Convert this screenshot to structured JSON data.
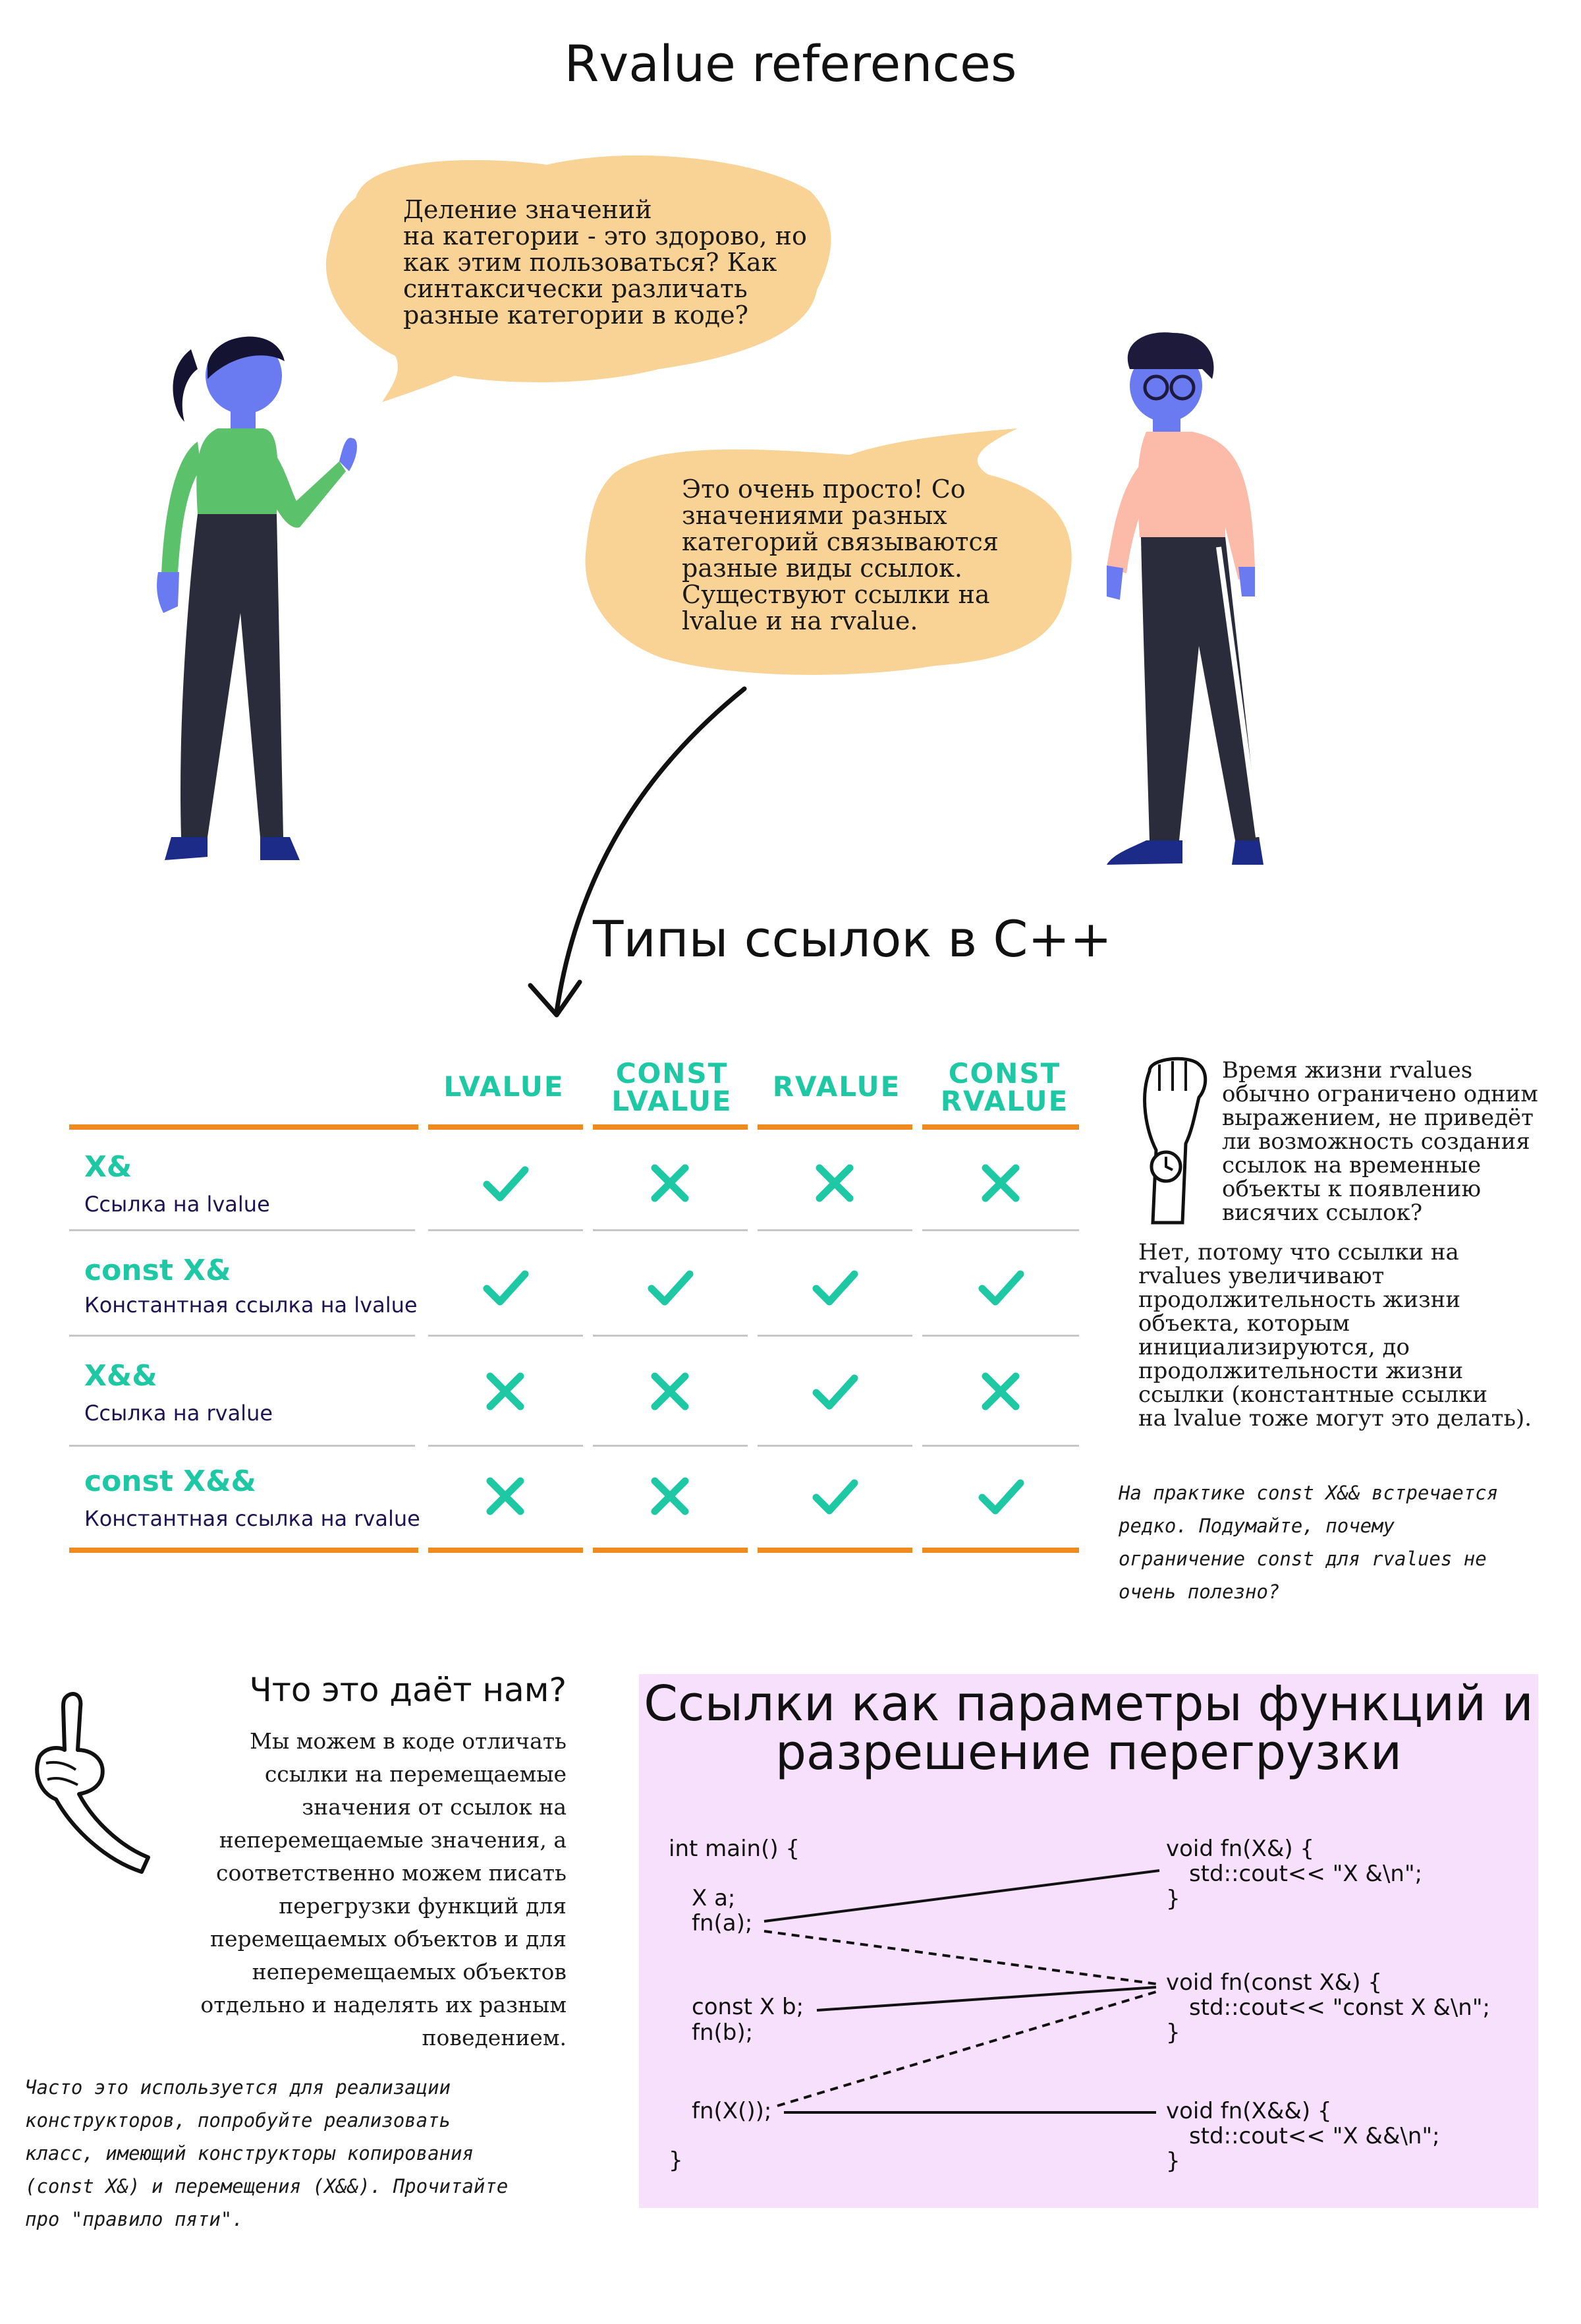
{
  "title": "Rvalue references",
  "dialogue": {
    "question_lines": [
      "Деление значений",
      "на категории - это здорово, но",
      "как этим пользоваться? Как",
      "синтаксически различать",
      "разные категории в коде?"
    ],
    "answer_lines": [
      "Это очень просто! Со",
      "значениями разных",
      "категорий связываются",
      "разные виды ссылок.",
      "Существуют ссылки на",
      "lvalue и на rvalue."
    ]
  },
  "types_title": "Типы ссылок в C++",
  "table": {
    "headers": [
      {
        "line1": "LVALUE",
        "line2": ""
      },
      {
        "line1": "CONST",
        "line2": "LVALUE"
      },
      {
        "line1": "RVALUE",
        "line2": ""
      },
      {
        "line1": "CONST",
        "line2": "RVALUE"
      }
    ],
    "rows": [
      {
        "label": "X&",
        "sub": "Ссылка на lvalue",
        "cells": [
          "check",
          "cross",
          "cross",
          "cross"
        ]
      },
      {
        "label": "const X&",
        "sub": "Константная ссылка на lvalue",
        "cells": [
          "check",
          "check",
          "check",
          "check"
        ]
      },
      {
        "label": "X&&",
        "sub": "Ссылка на rvalue",
        "cells": [
          "cross",
          "cross",
          "check",
          "cross"
        ]
      },
      {
        "label": "const X&&",
        "sub": "Константная ссылка на rvalue",
        "cells": [
          "cross",
          "cross",
          "check",
          "check"
        ]
      }
    ],
    "colors": {
      "accent": "#1ec8a5",
      "line": "#ef8a1f",
      "sub_text": "#1e1454"
    }
  },
  "side_note": {
    "question_lines": [
      "Время жизни rvalues",
      "обычно ограничено одним",
      "выражением, не приведёт",
      "ли возможность создания",
      "ссылок на временные",
      "объекты к появлению",
      "висячих ссылок?"
    ],
    "answer_lines": [
      "Нет, потому что ссылки на",
      "rvalues увеличивают",
      "продолжительность жизни",
      "объекта, которым",
      "инициализируются, до",
      "продолжительности жизни",
      "ссылки (константные ссылки",
      "на lvalue тоже могут это делать)."
    ],
    "practice_lines": [
      "На практике const X&& встречается",
      "редко. Подумайте, почему",
      "ограничение const для rvalues не",
      "очень полезно?"
    ]
  },
  "what_gives": {
    "title": "Что это даёт нам?",
    "body_lines": [
      "Мы можем в коде отличать",
      "ссылки на перемещаемые",
      "значения от ссылок на",
      "неперемещаемые значения, а",
      "соответственно можем писать",
      "перегрузки функций для",
      "перемещаемых объектов и для",
      "неперемещаемых объектов",
      "отдельно и наделять их разным",
      "поведением."
    ],
    "note_lines": [
      "Часто это используется для реализации",
      "конструкторов, попробуйте реализовать",
      "класс, имеющий конструкторы копирования",
      "(const X&) и перемещения (X&&). Прочитайте",
      "про \"правило пяти\"."
    ]
  },
  "overload_panel": {
    "title_line1": "Ссылки как параметры функций и",
    "title_line2": "разрешение перегрузки",
    "background": "#f6e0fb",
    "left_code": {
      "l1": "int main() {",
      "l2": "X a;",
      "l3": "fn(a);",
      "l4": "const X b;",
      "l5": "fn(b);",
      "l6": "fn(X());",
      "l7": "}"
    },
    "right_code": {
      "f1a": "void fn(X&) {",
      "f1b": "std::cout<< \"X &\\n\";",
      "f1c": "}",
      "f2a": "void fn(const X&) {",
      "f2b": "std::cout<< \"const X &\\n\";",
      "f2c": "}",
      "f3a": "void fn(X&&) {",
      "f3b": "std::cout<< \"X &&\\n\";",
      "f3c": "}"
    }
  }
}
